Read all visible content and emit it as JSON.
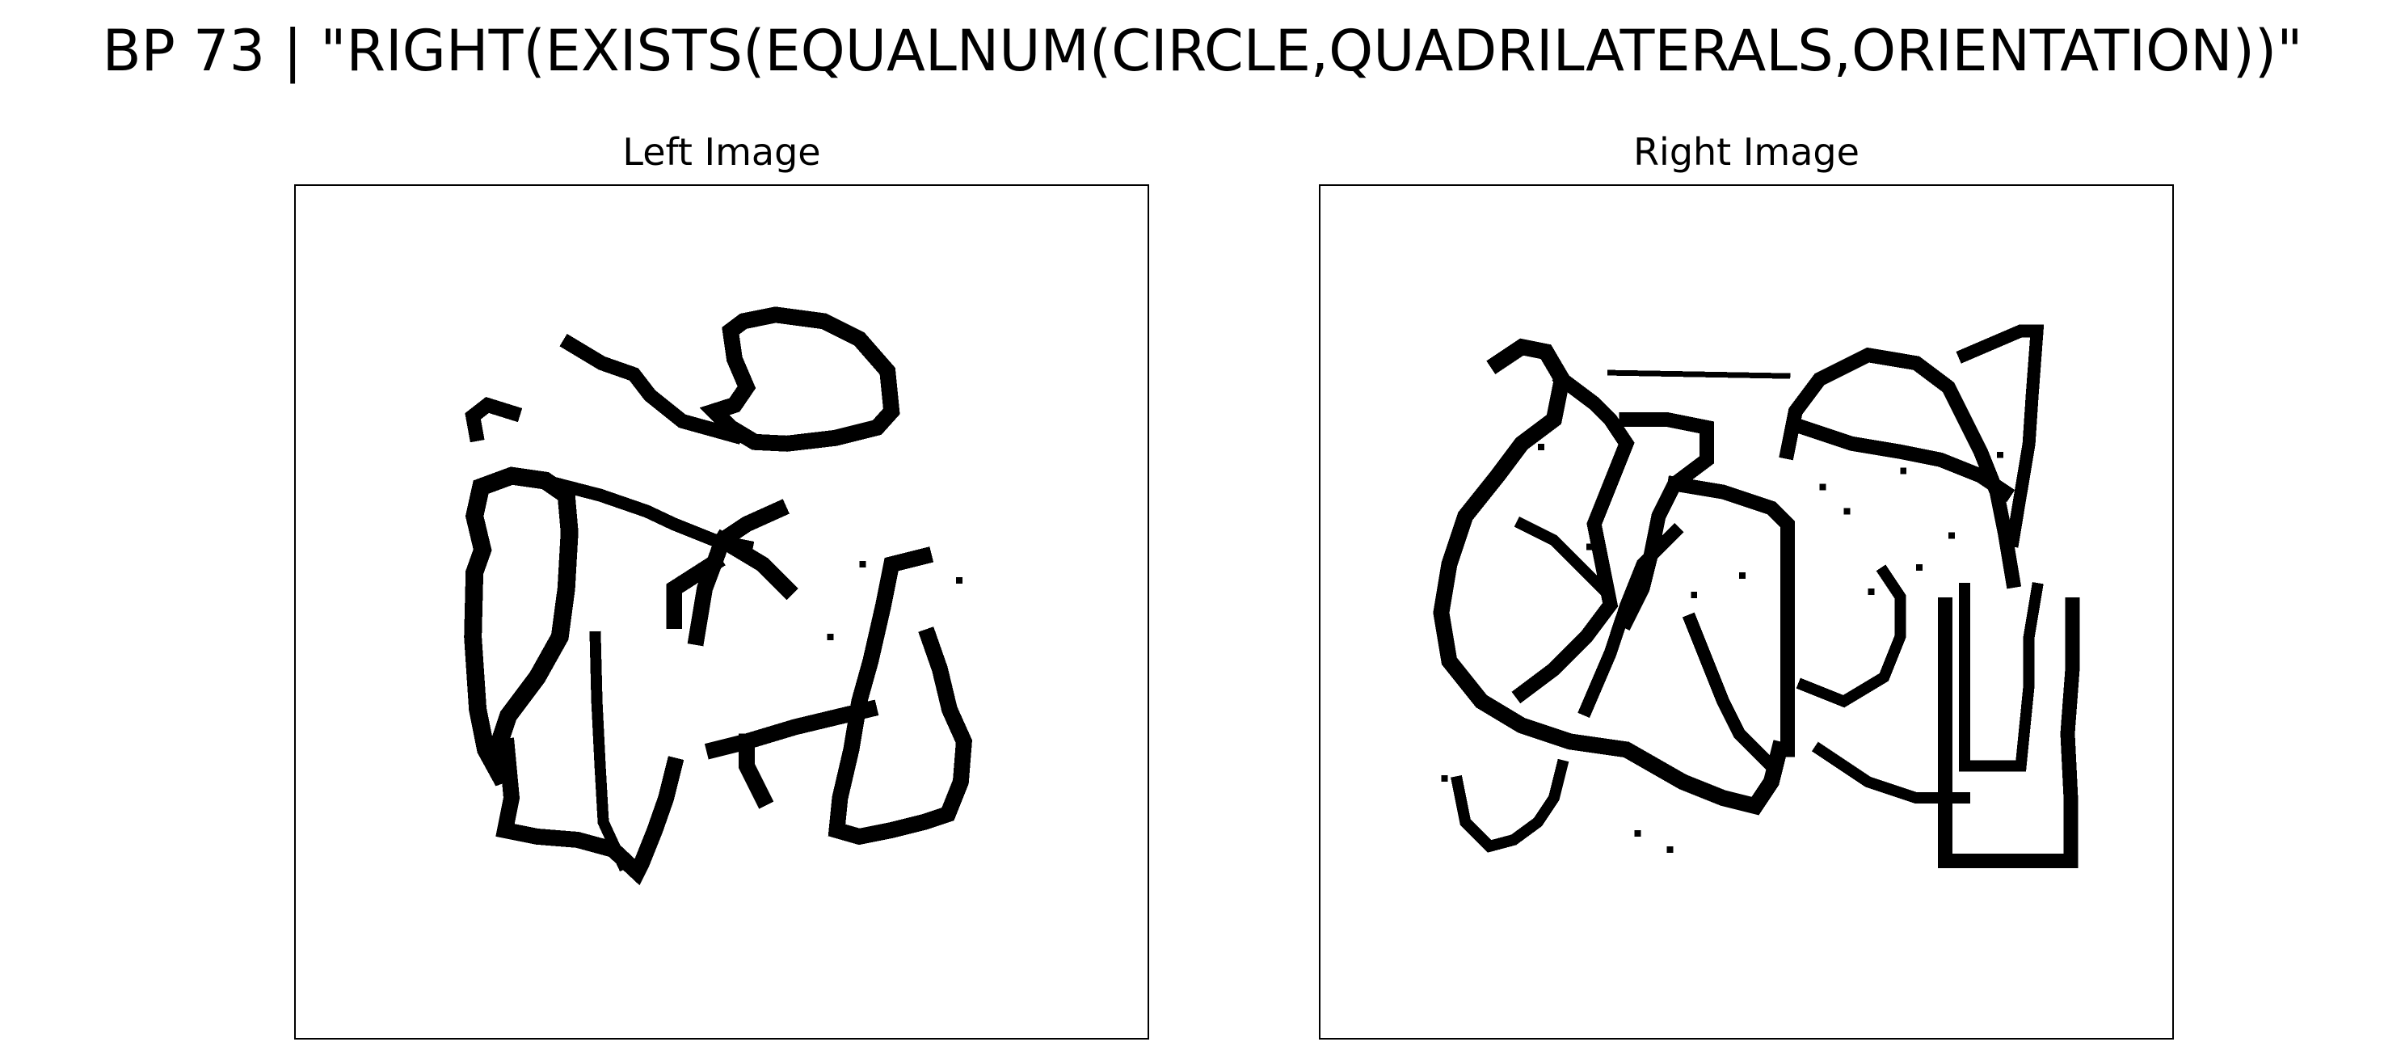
{
  "figure": {
    "title": "BP 73 | \"RIGHT(EXISTS(EQUALNUM(CIRCLE,QUADRILATERALS,ORIENTATION))\""
  },
  "panels": {
    "left": {
      "label": "Left Image"
    },
    "right": {
      "label": "Right Image"
    }
  },
  "colors": {
    "foreground": "#000000",
    "background": "#ffffff"
  }
}
